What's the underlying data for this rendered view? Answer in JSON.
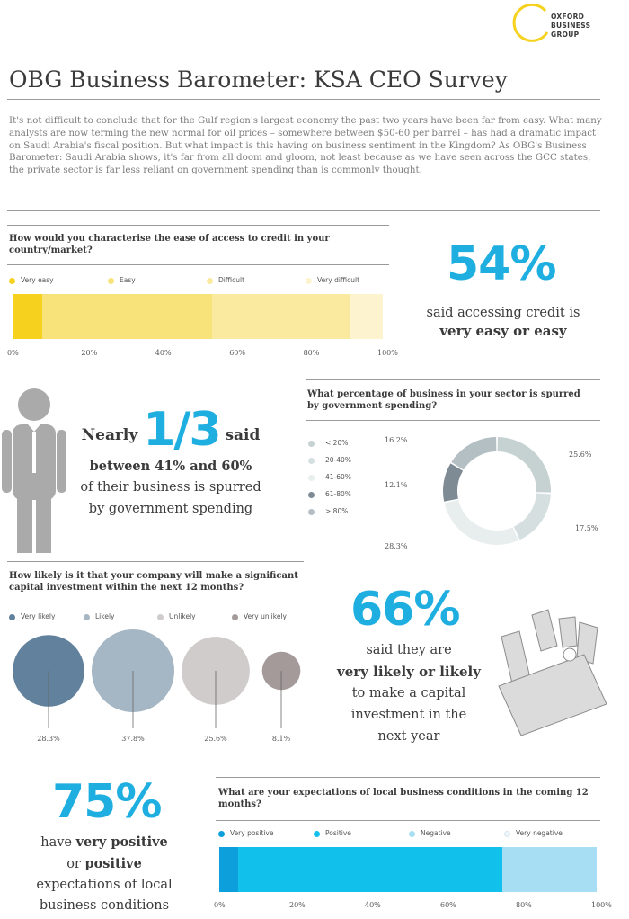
{
  "logo": {
    "line1": "OXFORD",
    "line2": "BUSINESS",
    "line3": "GROUP"
  },
  "title": "OBG Business Barometer: KSA CEO Survey",
  "intro": "It's not difficult to conclude that for the Gulf region's largest economy the past two years have been far from easy. What many analysts are now terming the new normal for oil prices – somewhere between $50-60 per barrel – has had a dramatic impact on Saudi Arabia's fiscal position. But what impact is this having on business sentiment in the Kingdom? As OBG's Business Barometer: Saudi Arabia shows, it's far from all doom and gloom, not least because as we have seen across the GCC states, the private sector is far less reliant on government spending than is commonly thought.",
  "colors": {
    "accent": "#1eaee0",
    "credit": [
      "#f6d21f",
      "#f8e27a",
      "#faeaa0",
      "#fdf3cf"
    ],
    "gov": [
      "#c6d2d1",
      "#d5dfdf",
      "#e8eeee",
      "#7e8b94",
      "#b4bfc4"
    ],
    "invest": [
      "#61819c",
      "#a5b6c4",
      "#cfcccb",
      "#a49a9a"
    ],
    "expect": [
      "#0d9fdc",
      "#12c0ec",
      "#a8def3",
      "#eef6fa"
    ]
  },
  "credit": {
    "question": "How would you characterise the ease of access to credit in your country/market?",
    "ticks": [
      "0%",
      "20%",
      "40%",
      "60%",
      "80%",
      "100%"
    ],
    "stat_pct": "54%",
    "stat_line1": "said accessing credit is",
    "stat_line2": "very easy or easy"
  },
  "gov": {
    "question": "What percentage of business in your sector is spurred by government spending?",
    "stat_pre": "Nearly",
    "stat_big": "1/3",
    "stat_post": "said",
    "stat_line2": "between 41% and 60%",
    "stat_line3": "of their business is spurred",
    "stat_line4": "by government spending"
  },
  "invest": {
    "question": "How likely is it that your company will make a significant capital investment within the next 12 months?",
    "stat_pct": "66%",
    "stat_line1": "said they are",
    "stat_line2": "very likely or likely",
    "stat_line3": "to make a capital",
    "stat_line4": "investment in the",
    "stat_line5": "next year"
  },
  "expect": {
    "question": "What are your expectations of local business conditions in the coming 12 months?",
    "ticks": [
      "0%",
      "20%",
      "40%",
      "60%",
      "80%",
      "100%"
    ],
    "stat_pct": "75%",
    "stat_line1": "have very positive",
    "stat_line2": "or positive",
    "stat_line3": "expectations of local",
    "stat_line4": "business conditions"
  },
  "chart_data": [
    {
      "type": "bar",
      "orientation": "horizontal-stacked",
      "title": "How would you characterise the ease of access to credit in your country/market?",
      "categories": [
        "Very easy",
        "Easy",
        "Difficult",
        "Very difficult"
      ],
      "values": [
        8,
        46,
        37,
        9
      ],
      "xlim": [
        0,
        100
      ]
    },
    {
      "type": "pie",
      "title": "What percentage of business in your sector is spurred by government spending?",
      "categories": [
        "< 20%",
        "20-40%",
        "41-60%",
        "61-80%",
        "> 80%"
      ],
      "values": [
        25.6,
        17.5,
        28.3,
        12.1,
        16.2
      ],
      "labels": [
        "25.6%",
        "17.5%",
        "28.3%",
        "12.1%",
        "16.2%"
      ]
    },
    {
      "type": "bubble",
      "title": "How likely is it that your company will make a significant capital investment within the next 12 months?",
      "categories": [
        "Very likely",
        "Likely",
        "Unlikely",
        "Very unlikely"
      ],
      "values": [
        28.3,
        37.8,
        25.6,
        8.1
      ],
      "labels": [
        "28.3%",
        "37.8%",
        "25.6%",
        "8.1%"
      ]
    },
    {
      "type": "bar",
      "orientation": "horizontal-stacked",
      "title": "What are your expectations of local business conditions in the coming 12 months?",
      "categories": [
        "Very positive",
        "Positive",
        "Negative",
        "Very negative"
      ],
      "values": [
        5,
        70,
        25,
        0
      ],
      "xlim": [
        0,
        100
      ]
    }
  ]
}
